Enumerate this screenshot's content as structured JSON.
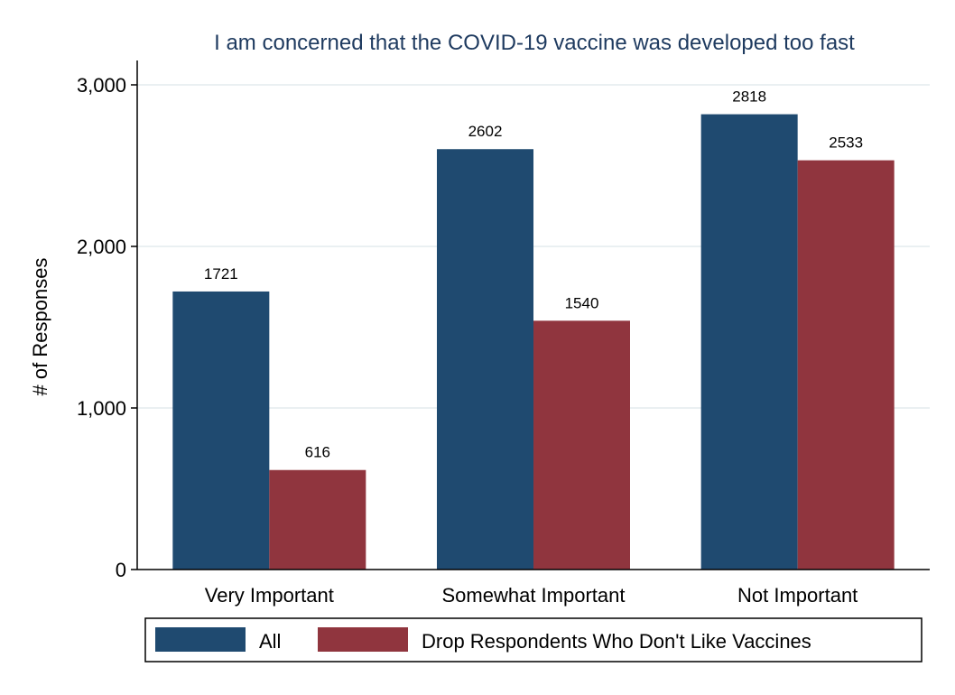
{
  "chart_data": {
    "type": "bar",
    "title": "I am concerned that the COVID-19 vaccine was developed too fast",
    "xlabel": "",
    "ylabel": "# of Responses",
    "categories": [
      "Very Important",
      "Somewhat Important",
      "Not Important"
    ],
    "series": [
      {
        "name": "All",
        "values": [
          1721,
          2602,
          2818
        ],
        "color": "#1f4a70"
      },
      {
        "name": "Drop Respondents Who Don't Like Vaccines",
        "values": [
          616,
          1540,
          2533
        ],
        "color": "#90353e"
      }
    ],
    "ylim": [
      0,
      3000
    ],
    "yticks": [
      0,
      1000,
      2000,
      3000
    ],
    "ytick_labels": [
      "0",
      "1,000",
      "2,000",
      "3,000"
    ],
    "grid": true,
    "legend_position": "bottom",
    "colors": {
      "grid": "#eaf0f2",
      "axis": "#000000",
      "title": "#1e3a5f"
    }
  }
}
